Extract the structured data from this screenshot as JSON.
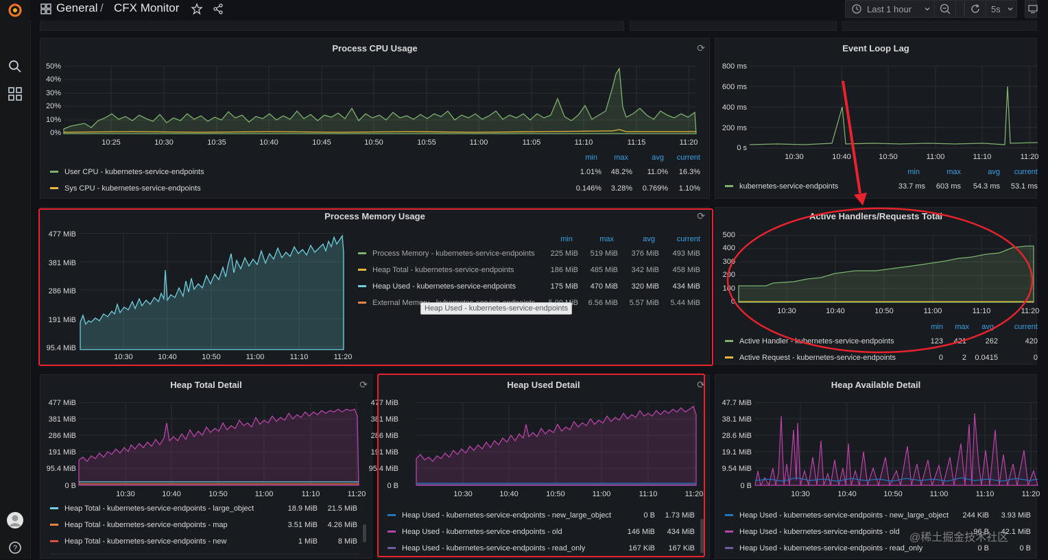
{
  "breadcrumb": {
    "folder": "General",
    "separator": "/",
    "dashboard": "CFX Monitor"
  },
  "toolbar": {
    "time_range": "Last 1 hour",
    "refresh_interval": "5s"
  },
  "panels": {
    "cpu": {
      "title": "Process CPU Usage",
      "y_ticks": [
        "50%",
        "40%",
        "30%",
        "20%",
        "10%",
        "0%"
      ],
      "x_ticks": [
        "10:25",
        "10:30",
        "10:35",
        "10:40",
        "10:45",
        "10:50",
        "10:55",
        "11:00",
        "11:05",
        "11:10",
        "11:15",
        "11:20"
      ],
      "legend_headers": [
        "min",
        "max",
        "avg",
        "current"
      ],
      "series": [
        {
          "name": "User CPU - kubernetes-service-endpoints",
          "color": "#7eb26d",
          "min": "1.01%",
          "max": "48.2%",
          "avg": "11.0%",
          "current": "16.3%"
        },
        {
          "name": "Sys CPU - kubernetes-service-endpoints",
          "color": "#eab839",
          "min": "0.146%",
          "max": "3.28%",
          "avg": "0.769%",
          "current": "1.10%"
        }
      ]
    },
    "event_loop": {
      "title": "Event Loop Lag",
      "y_ticks": [
        "800 ms",
        "600 ms",
        "400 ms",
        "200 ms",
        "0 s"
      ],
      "x_ticks": [
        "10:30",
        "10:40",
        "10:50",
        "11:00",
        "11:10",
        "11:20"
      ],
      "legend_headers": [
        "min",
        "max",
        "avg",
        "current"
      ],
      "series": [
        {
          "name": "kubernetes-service-endpoints",
          "color": "#7eb26d",
          "min": "33.7 ms",
          "max": "603 ms",
          "avg": "54.3 ms",
          "current": "53.1 ms"
        }
      ]
    },
    "memory": {
      "title": "Process Memory Usage",
      "y_ticks": [
        "477 MiB",
        "381 MiB",
        "286 MiB",
        "191 MiB",
        "95.4 MiB"
      ],
      "x_ticks": [
        "10:30",
        "10:40",
        "10:50",
        "11:00",
        "11:10",
        "11:20"
      ],
      "legend_headers": [
        "min",
        "max",
        "avg",
        "current"
      ],
      "series": [
        {
          "name": "Process Memory - kubernetes-service-endpoints",
          "color": "#7eb26d",
          "min": "225 MiB",
          "max": "519 MiB",
          "avg": "376 MiB",
          "current": "493 MiB"
        },
        {
          "name": "Heap Total - kubernetes-service-endpoints",
          "color": "#eab839",
          "min": "186 MiB",
          "max": "485 MiB",
          "avg": "342 MiB",
          "current": "458 MiB"
        },
        {
          "name": "Heap Used - kubernetes-service-endpoints",
          "color": "#6ed0e0",
          "min": "175 MiB",
          "max": "470 MiB",
          "avg": "320 MiB",
          "current": "434 MiB"
        },
        {
          "name": "External Memory - kubernetes-service-endpoints",
          "color": "#ef843c",
          "min": "5.00 MiB",
          "max": "6.56 MiB",
          "avg": "5.57 MiB",
          "current": "5.44 MiB"
        }
      ],
      "tooltip": "Heap Used - kubernetes-service-endpoints"
    },
    "active": {
      "title": "Active Handlers/Requests Total",
      "y_ticks": [
        "500",
        "400",
        "300",
        "200",
        "100",
        "0"
      ],
      "x_ticks": [
        "10:30",
        "10:40",
        "10:50",
        "11:00",
        "11:10",
        "11:20"
      ],
      "legend_headers": [
        "min",
        "max",
        "avg",
        "current"
      ],
      "series": [
        {
          "name": "Active Handler - kubernetes-service-endpoints",
          "color": "#7eb26d",
          "min": "123",
          "max": "421",
          "avg": "262",
          "current": "420"
        },
        {
          "name": "Active Request - kubernetes-service-endpoints",
          "color": "#eab839",
          "min": "0",
          "max": "2",
          "avg": "0.0415",
          "current": "0"
        }
      ]
    },
    "heap_total": {
      "title": "Heap Total Detail",
      "y_ticks": [
        "477 MiB",
        "381 MiB",
        "286 MiB",
        "191 MiB",
        "95.4 MiB",
        "0 B"
      ],
      "x_ticks": [
        "10:30",
        "10:40",
        "10:50",
        "11:00",
        "11:10",
        "11:20"
      ],
      "series": [
        {
          "name": "Heap Total - kubernetes-service-endpoints - large_object",
          "color": "#6ed0e0",
          "min": "18.9 MiB",
          "max": "21.5 MiB"
        },
        {
          "name": "Heap Total - kubernetes-service-endpoints - map",
          "color": "#ef843c",
          "min": "3.51 MiB",
          "max": "4.26 MiB"
        },
        {
          "name": "Heap Total - kubernetes-service-endpoints - new",
          "color": "#e24d42",
          "min": "1 MiB",
          "max": "8 MiB"
        }
      ]
    },
    "heap_used": {
      "title": "Heap Used Detail",
      "y_ticks": [
        "477 MiB",
        "381 MiB",
        "286 MiB",
        "191 MiB",
        "95.4 MiB",
        "0 B"
      ],
      "x_ticks": [
        "10:30",
        "10:40",
        "10:50",
        "11:00",
        "11:10",
        "11:20"
      ],
      "series": [
        {
          "name": "Heap Used - kubernetes-service-endpoints - new_large_object",
          "color": "#1f78c1",
          "min": "0 B",
          "max": "1.73 MiB"
        },
        {
          "name": "Heap Used - kubernetes-service-endpoints - old",
          "color": "#ba43a9",
          "min": "146 MiB",
          "max": "434 MiB"
        },
        {
          "name": "Heap Used - kubernetes-service-endpoints - read_only",
          "color": "#705da0",
          "min": "167 KiB",
          "max": "167 KiB"
        }
      ]
    },
    "heap_avail": {
      "title": "Heap Available Detail",
      "y_ticks": [
        "47.7 MiB",
        "38.1 MiB",
        "28.6 MiB",
        "19.1 MiB",
        "9.54 MiB",
        "0 B"
      ],
      "x_ticks": [
        "10:30",
        "10:40",
        "10:50",
        "11:00",
        "11:10",
        "11:20"
      ],
      "series": [
        {
          "name": "Heap Used - kubernetes-service-endpoints - new_large_object",
          "color": "#1f78c1",
          "min": "244 KiB",
          "max": "3.93 MiB"
        },
        {
          "name": "Heap Used - kubernetes-service-endpoints - old",
          "color": "#ba43a9",
          "min": "96 B",
          "max": "42.1 MiB"
        },
        {
          "name": "Heap Used - kubernetes-service-endpoints - read_only",
          "color": "#705da0",
          "min": "0 B",
          "max": "0 B"
        }
      ]
    }
  },
  "watermark": "@稀土掘金技术社区"
}
